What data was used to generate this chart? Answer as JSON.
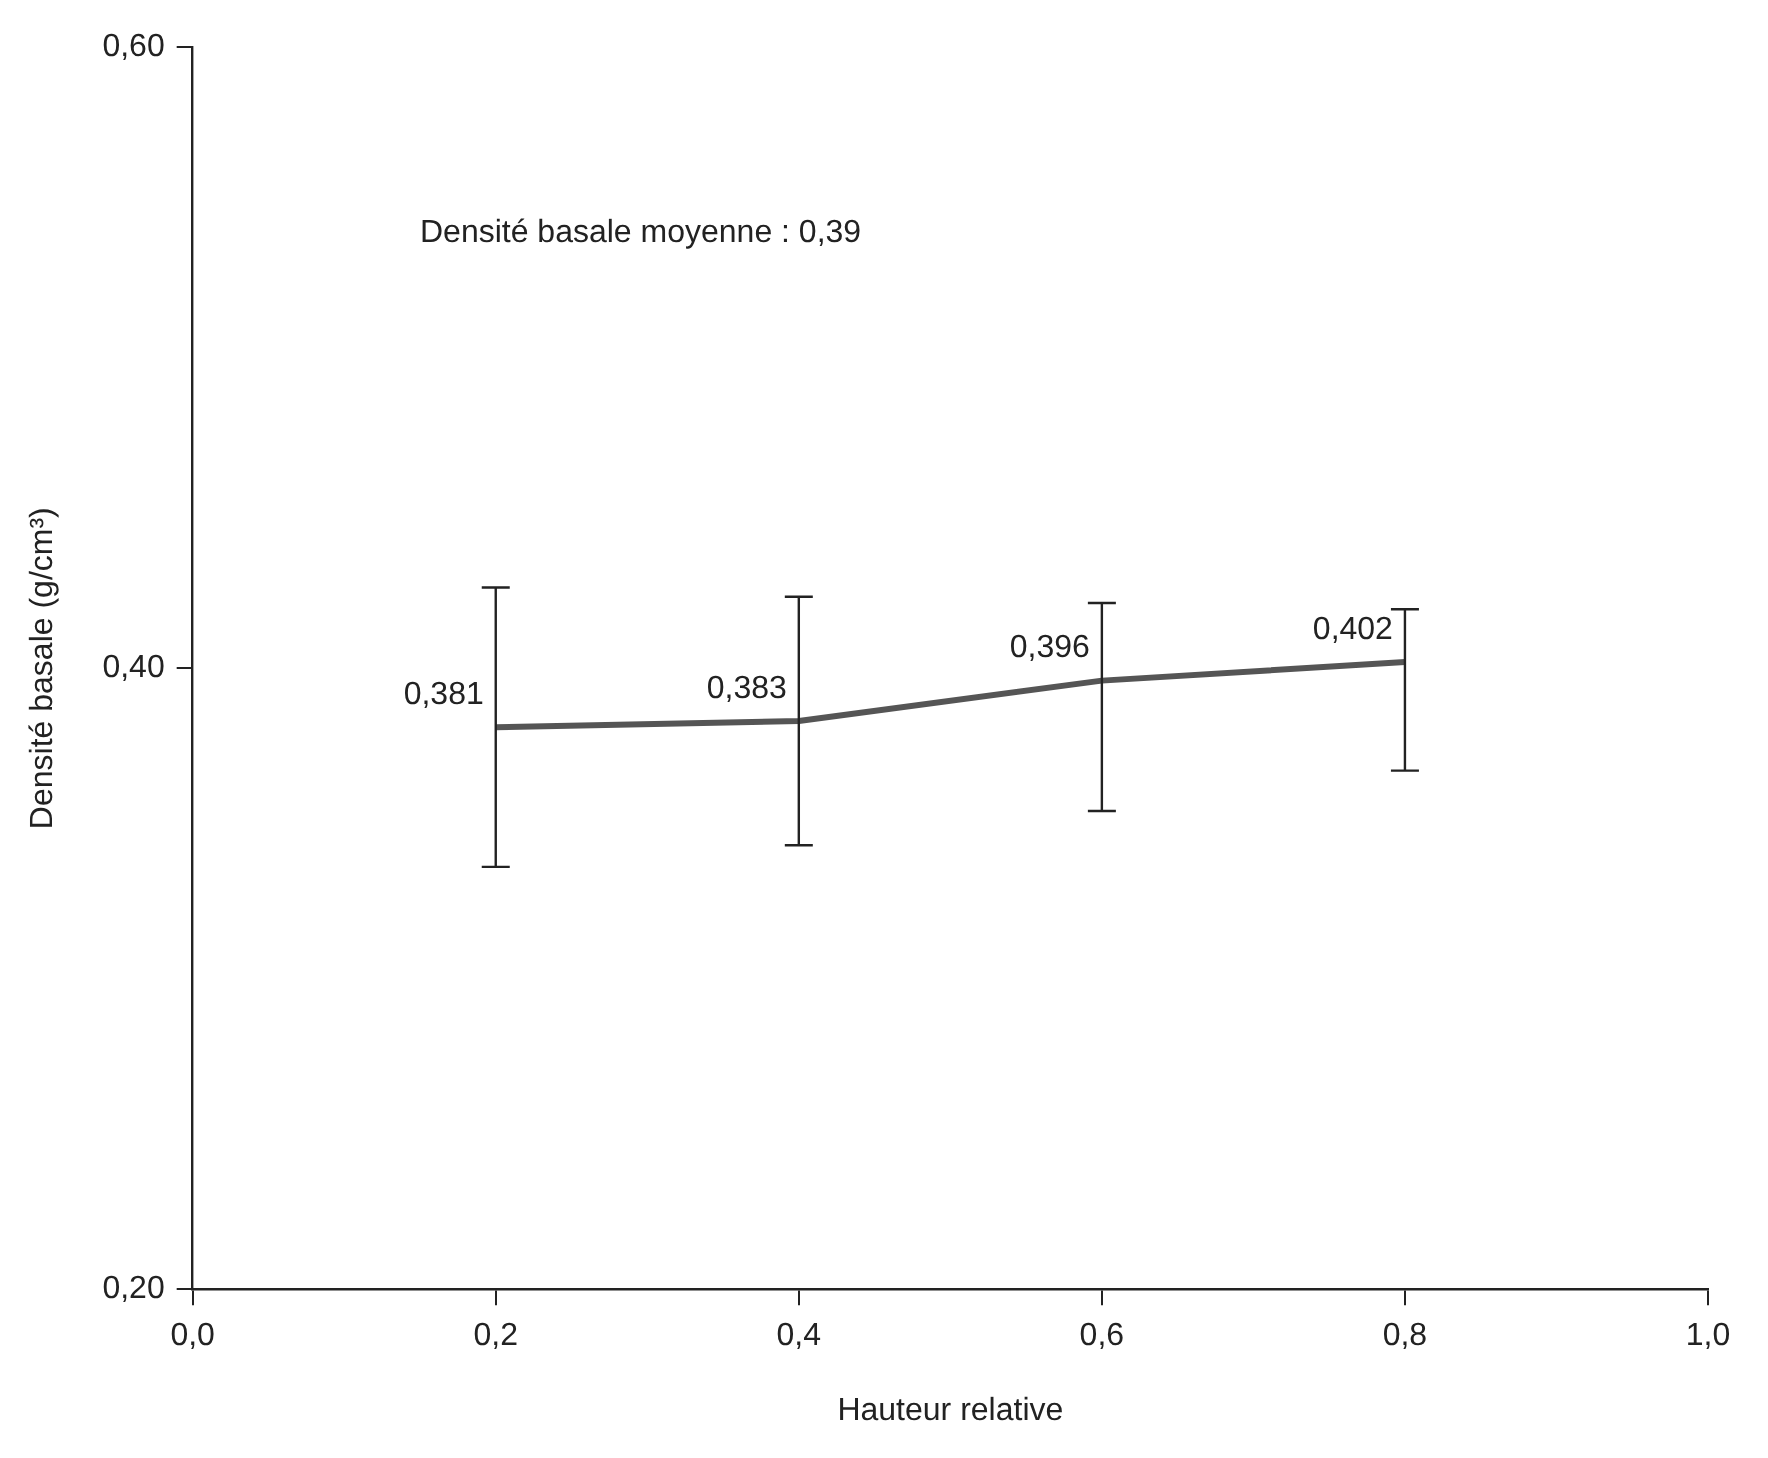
{
  "chart_data": {
    "type": "line",
    "xlabel": "Hauteur relative",
    "ylabel": "Densité basale (g/cm³)",
    "annotations": [
      "Densité basale moyenne : 0,39"
    ],
    "x": [
      0.2,
      0.4,
      0.6,
      0.8
    ],
    "series": [
      {
        "color": "#555555",
        "values": [
          0.381,
          0.383,
          0.396,
          0.402
        ],
        "errors": [
          [
            0.336,
            0.426
          ],
          [
            0.343,
            0.423
          ],
          [
            0.354,
            0.421
          ],
          [
            0.367,
            0.419
          ]
        ],
        "value_labels": [
          "0,381",
          "0,383",
          "0,396",
          "0,402"
        ]
      }
    ],
    "xlim": [
      0,
      1
    ],
    "ylim": [
      0.2,
      0.6
    ],
    "xticks": [
      {
        "value": 0,
        "label": "0,0"
      },
      {
        "value": 0.2,
        "label": "0,2"
      },
      {
        "value": 0.4,
        "label": "0,4"
      },
      {
        "value": 0.6,
        "label": "0,6"
      },
      {
        "value": 0.8,
        "label": "0,8"
      },
      {
        "value": 1,
        "label": "1,0"
      }
    ],
    "yticks": [
      {
        "value": 0.2,
        "label": "0,20"
      },
      {
        "value": 0.4,
        "label": "0,40"
      },
      {
        "value": 0.6,
        "label": "0,60"
      }
    ],
    "grid": false,
    "legend": false,
    "marker": "none",
    "line_style": "solid"
  }
}
